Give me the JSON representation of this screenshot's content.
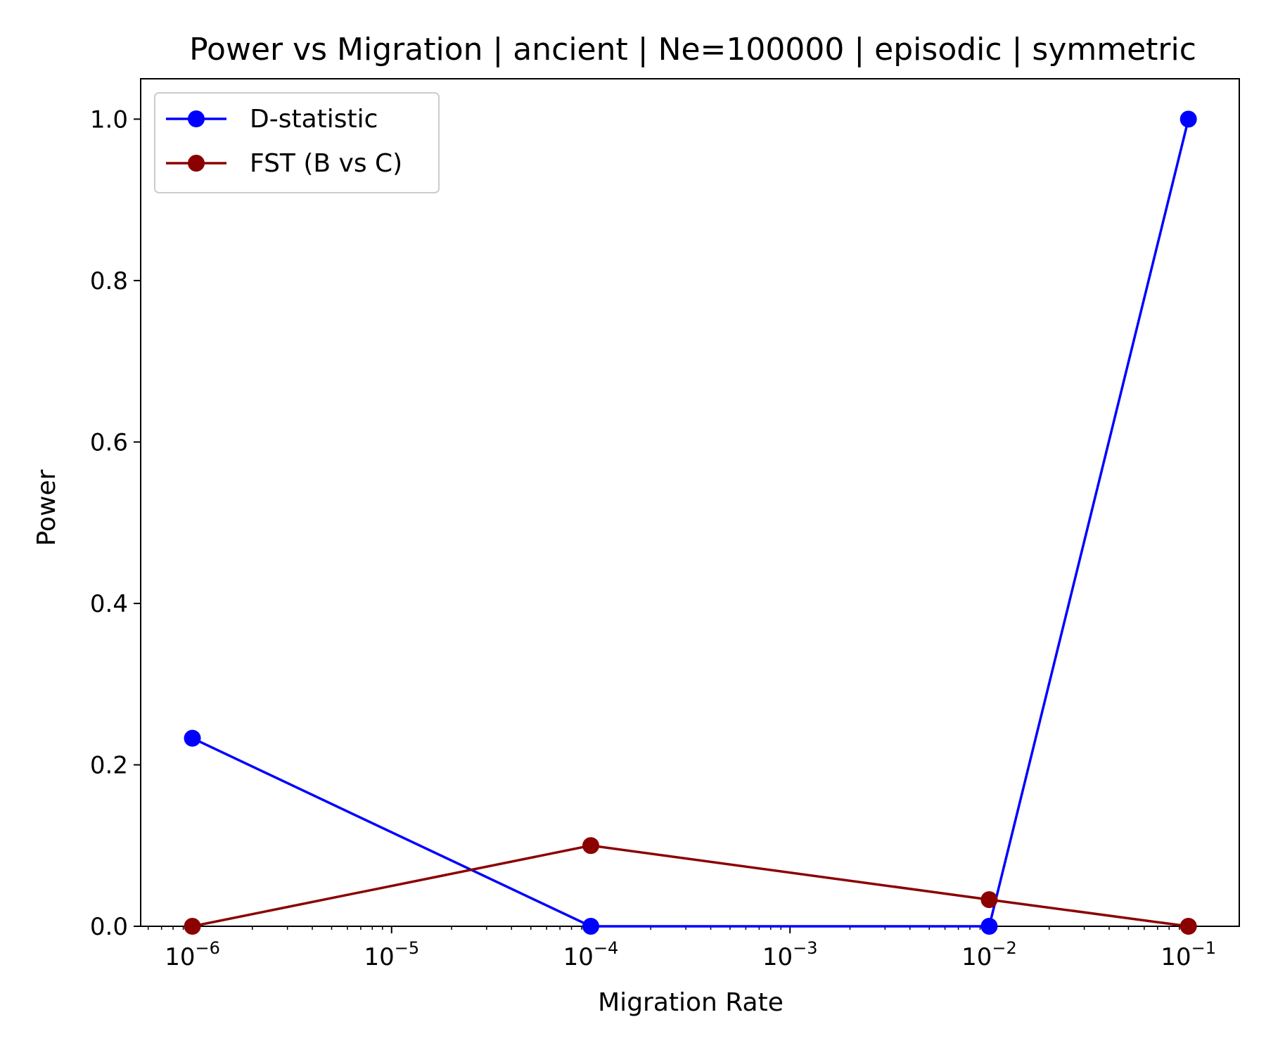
{
  "chart_data": {
    "type": "line",
    "title": "Power vs Migration | ancient | Ne=100000 | episodic | symmetric",
    "xlabel": "Migration Rate",
    "ylabel": "Power",
    "x_scale": "log",
    "x": [
      1e-06,
      0.0001,
      0.01,
      0.1
    ],
    "xlim": [
      5.5e-07,
      0.18
    ],
    "ylim": [
      0,
      1.05
    ],
    "x_ticks": [
      {
        "value": 1e-06,
        "base": "10",
        "exp": "−6"
      },
      {
        "value": 1e-05,
        "base": "10",
        "exp": "−5"
      },
      {
        "value": 0.0001,
        "base": "10",
        "exp": "−4"
      },
      {
        "value": 0.001,
        "base": "10",
        "exp": "−3"
      },
      {
        "value": 0.01,
        "base": "10",
        "exp": "−2"
      },
      {
        "value": 0.1,
        "base": "10",
        "exp": "−1"
      }
    ],
    "y_ticks": [
      {
        "value": 0.0,
        "label": "0.0"
      },
      {
        "value": 0.2,
        "label": "0.2"
      },
      {
        "value": 0.4,
        "label": "0.4"
      },
      {
        "value": 0.6,
        "label": "0.6"
      },
      {
        "value": 0.8,
        "label": "0.8"
      },
      {
        "value": 1.0,
        "label": "1.0"
      }
    ],
    "grid": false,
    "legend_position": "top-left",
    "series": [
      {
        "name": "D-statistic",
        "color": "#0000ff",
        "marker": "circle",
        "values": [
          0.233,
          0.0,
          0.0,
          1.0
        ]
      },
      {
        "name": "FST (B vs C)",
        "color": "#8b0000",
        "marker": "circle",
        "values": [
          0.0,
          0.1,
          0.033,
          0.0
        ]
      }
    ]
  }
}
